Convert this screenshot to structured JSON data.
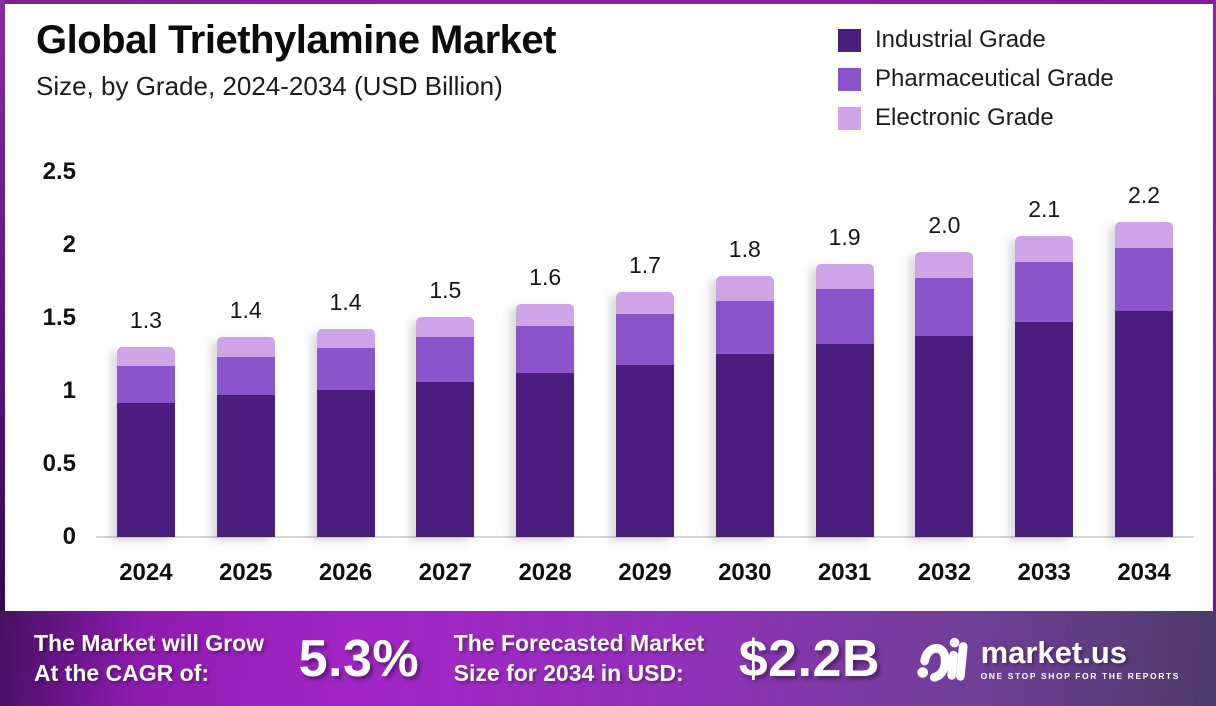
{
  "header": {
    "title": "Global Triethylamine Market",
    "subtitle": "Size, by Grade, 2024-2034 (USD Billion)"
  },
  "legend": [
    {
      "label": "Industrial Grade",
      "color": "#4a1d7e"
    },
    {
      "label": "Pharmaceutical Grade",
      "color": "#8b54cb"
    },
    {
      "label": "Electronic Grade",
      "color": "#cfa4e8"
    }
  ],
  "chart_data": {
    "type": "bar",
    "stacked": true,
    "title": "Global Triethylamine Market Size, by Grade, 2024-2034 (USD Billion)",
    "categories": [
      "2024",
      "2025",
      "2026",
      "2027",
      "2028",
      "2029",
      "2030",
      "2031",
      "2032",
      "2033",
      "2034"
    ],
    "series": [
      {
        "name": "Industrial Grade",
        "color": "#4a1d7e",
        "values": [
          0.92,
          0.97,
          1.01,
          1.06,
          1.12,
          1.18,
          1.25,
          1.32,
          1.38,
          1.47,
          1.55
        ]
      },
      {
        "name": "Pharmaceutical Grade",
        "color": "#8b54cb",
        "values": [
          0.25,
          0.26,
          0.29,
          0.31,
          0.32,
          0.35,
          0.36,
          0.38,
          0.4,
          0.41,
          0.43
        ]
      },
      {
        "name": "Electronic Grade",
        "color": "#cfa4e8",
        "values": [
          0.13,
          0.14,
          0.13,
          0.14,
          0.15,
          0.15,
          0.17,
          0.17,
          0.18,
          0.18,
          0.18
        ]
      }
    ],
    "total_labels": [
      "1.3",
      "1.4",
      "1.4",
      "1.5",
      "1.6",
      "1.7",
      "1.8",
      "1.9",
      "2.0",
      "2.1",
      "2.2"
    ],
    "xlabel": "",
    "ylabel": "",
    "ylim": [
      0,
      2.5
    ],
    "yticks": [
      0,
      0.5,
      1,
      1.5,
      2,
      2.5
    ],
    "ytick_labels": [
      "0",
      "0.5",
      "1",
      "1.5",
      "2",
      "2.5"
    ],
    "grid": false,
    "legend_position": "top-right"
  },
  "footer": {
    "cagr_label_line1": "The Market will Grow",
    "cagr_label_line2": "At the CAGR of:",
    "cagr_value": "5.3%",
    "forecast_label_line1": "The Forecasted Market",
    "forecast_label_line2": "Size for 2034 in USD:",
    "forecast_value": "$2.2B",
    "brand": {
      "name": "market.us",
      "tagline": "ONE STOP SHOP FOR THE REPORTS"
    }
  }
}
